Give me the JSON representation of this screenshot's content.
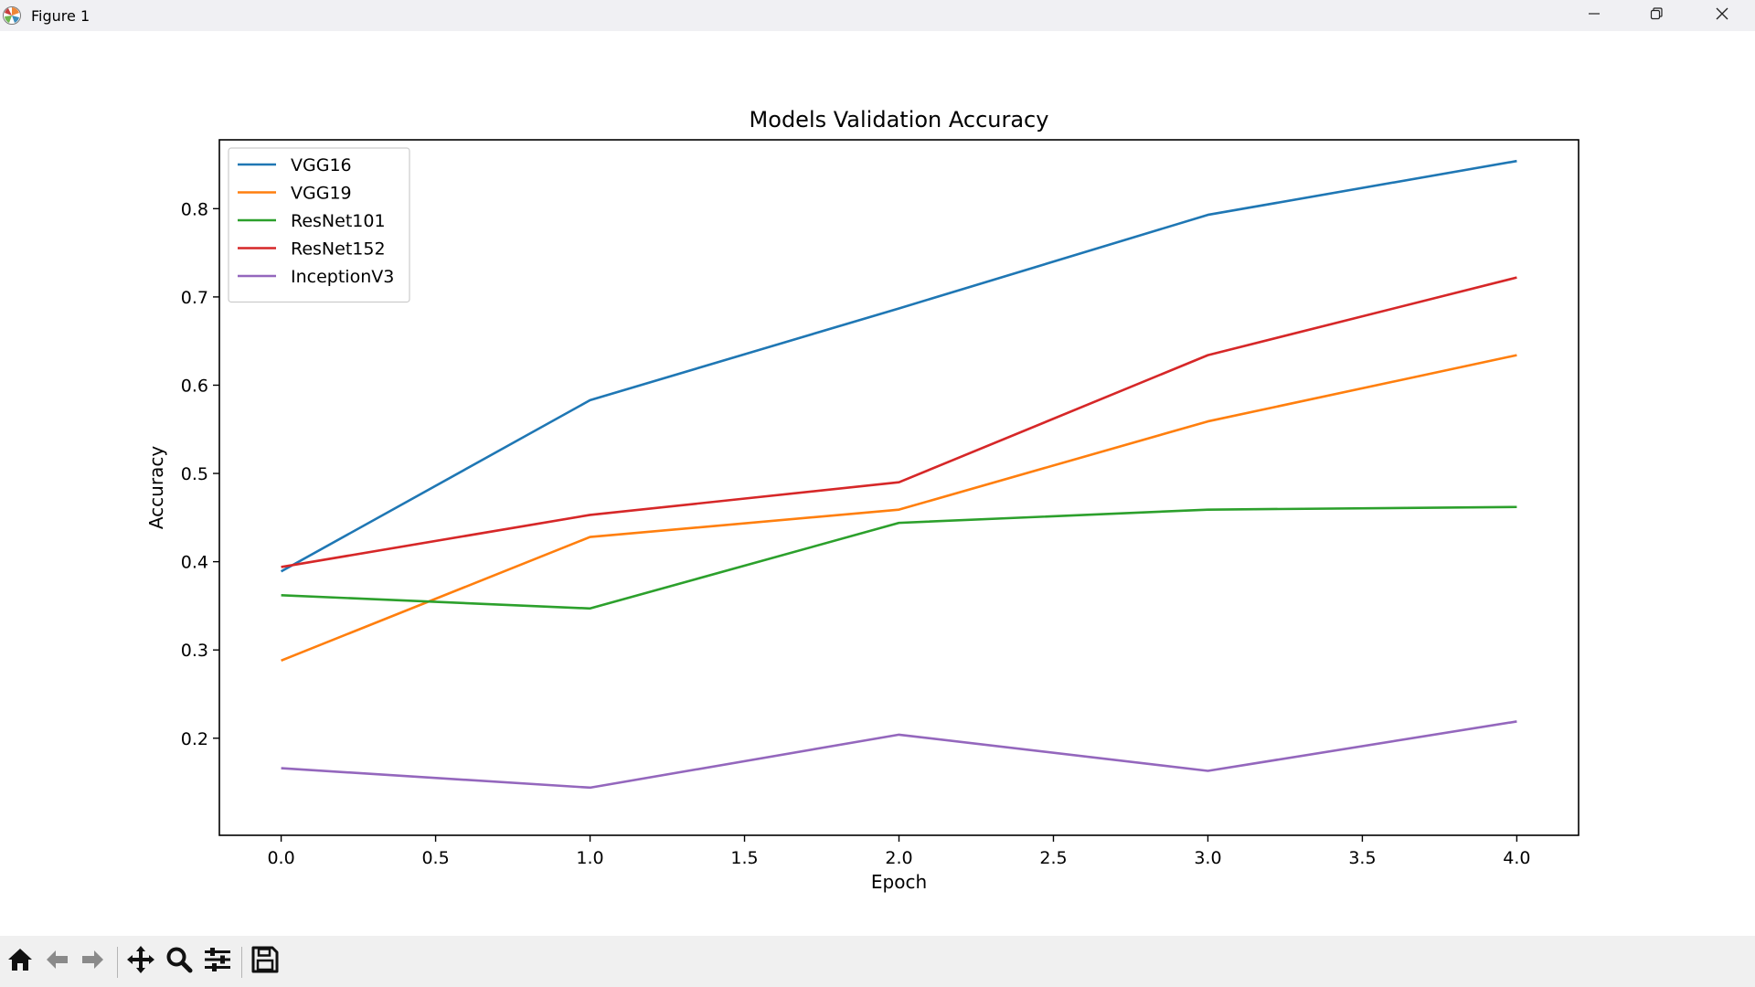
{
  "window": {
    "title": "Figure 1",
    "icon": "matplotlib-logo-icon",
    "controls": [
      "minimize-icon",
      "restore-icon",
      "close-icon"
    ]
  },
  "toolbar": {
    "buttons": [
      {
        "name": "home",
        "icon": "home-icon"
      },
      {
        "name": "back",
        "icon": "arrow-left-icon"
      },
      {
        "name": "forward",
        "icon": "arrow-right-icon"
      },
      {
        "name": "pan",
        "icon": "move-icon"
      },
      {
        "name": "zoom",
        "icon": "zoom-icon"
      },
      {
        "name": "configure-subplots",
        "icon": "sliders-icon"
      },
      {
        "name": "save",
        "icon": "save-icon"
      }
    ]
  },
  "chart_data": {
    "type": "line",
    "title": "Models Validation Accuracy",
    "xlabel": "Epoch",
    "ylabel": "Accuracy",
    "xlim": [
      -0.2,
      4.2
    ],
    "ylim": [
      0.09,
      0.878
    ],
    "xticks": [
      0.0,
      0.5,
      1.0,
      1.5,
      2.0,
      2.5,
      3.0,
      3.5,
      4.0
    ],
    "xtick_labels": [
      "0.0",
      "0.5",
      "1.0",
      "1.5",
      "2.0",
      "2.5",
      "3.0",
      "3.5",
      "4.0"
    ],
    "yticks": [
      0.2,
      0.3,
      0.4,
      0.5,
      0.6,
      0.7,
      0.8
    ],
    "ytick_labels": [
      "0.2",
      "0.3",
      "0.4",
      "0.5",
      "0.6",
      "0.7",
      "0.8"
    ],
    "grid": false,
    "legend_position": "top-left",
    "x": [
      0,
      1,
      2,
      3,
      4
    ],
    "series": [
      {
        "name": "VGG16",
        "color": "#1f77b4",
        "values": [
          0.389,
          0.583,
          0.687,
          0.793,
          0.854
        ]
      },
      {
        "name": "VGG19",
        "color": "#ff7f0e",
        "values": [
          0.288,
          0.428,
          0.459,
          0.559,
          0.634
        ]
      },
      {
        "name": "ResNet101",
        "color": "#2ca02c",
        "values": [
          0.362,
          0.347,
          0.444,
          0.459,
          0.462
        ]
      },
      {
        "name": "ResNet152",
        "color": "#d62728",
        "values": [
          0.394,
          0.453,
          0.49,
          0.634,
          0.722
        ]
      },
      {
        "name": "InceptionV3",
        "color": "#9467bd",
        "values": [
          0.166,
          0.144,
          0.204,
          0.163,
          0.219
        ]
      }
    ]
  }
}
